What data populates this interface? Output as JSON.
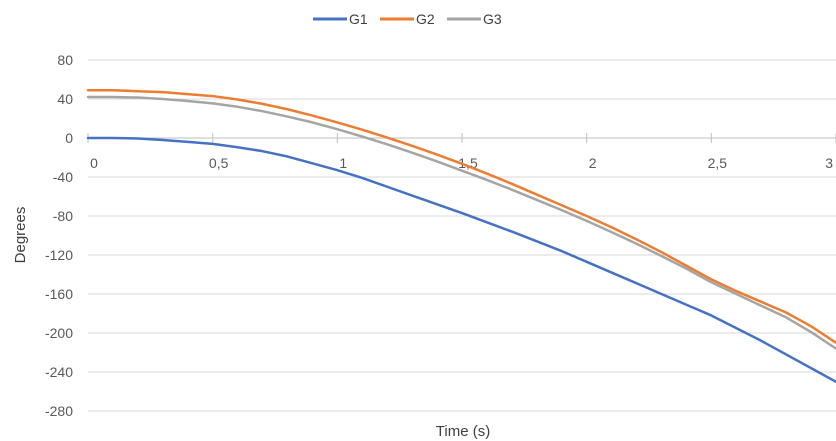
{
  "chart_data": {
    "type": "line",
    "xlabel": "Time (s)",
    "ylabel": "Degrees",
    "xlim": [
      0,
      3
    ],
    "ylim": [
      -280,
      80
    ],
    "x_ticks": [
      0,
      0.5,
      1,
      1.5,
      2,
      2.5,
      3
    ],
    "x_tick_labels": [
      "0",
      "0,5",
      "1",
      "1,5",
      "2",
      "2,5",
      "3"
    ],
    "y_ticks": [
      80,
      40,
      0,
      -40,
      -80,
      -120,
      -160,
      -200,
      -240,
      -280
    ],
    "y_tick_labels": [
      "80",
      "40",
      "0",
      "-40",
      "-80",
      "-120",
      "-160",
      "-200",
      "-240",
      "-280"
    ],
    "grid": "horizontal",
    "legend_position": "top-center",
    "series": [
      {
        "name": "G1",
        "color": "#4472C4",
        "x": [
          0,
          0.1,
          0.2,
          0.3,
          0.4,
          0.5,
          0.6,
          0.7,
          0.8,
          0.9,
          1.0,
          1.1,
          1.2,
          1.3,
          1.4,
          1.5,
          1.6,
          1.7,
          1.8,
          1.9,
          2.0,
          2.1,
          2.2,
          2.3,
          2.4,
          2.5,
          2.6,
          2.7,
          2.8,
          2.9,
          3.0
        ],
        "y": [
          0,
          0,
          -0.5,
          -2,
          -4,
          -6,
          -9.5,
          -13.5,
          -19,
          -26,
          -33,
          -41,
          -50,
          -59,
          -68,
          -77,
          -86.5,
          -96,
          -106,
          -116,
          -127,
          -138,
          -149,
          -160,
          -171,
          -182,
          -195,
          -208,
          -222,
          -236,
          -250
        ]
      },
      {
        "name": "G2",
        "color": "#ED7D31",
        "x": [
          0,
          0.1,
          0.2,
          0.3,
          0.4,
          0.5,
          0.6,
          0.7,
          0.8,
          0.9,
          1.0,
          1.1,
          1.2,
          1.3,
          1.4,
          1.5,
          1.6,
          1.7,
          1.8,
          1.9,
          2.0,
          2.1,
          2.2,
          2.3,
          2.4,
          2.5,
          2.6,
          2.7,
          2.8,
          2.9,
          3.0
        ],
        "y": [
          49,
          49,
          48,
          47,
          45,
          43,
          39.5,
          35,
          29.5,
          23,
          16,
          8.5,
          0.5,
          -8,
          -17,
          -26.5,
          -36.5,
          -47,
          -58,
          -69,
          -80,
          -91.5,
          -104,
          -117,
          -131,
          -145,
          -157,
          -168,
          -179,
          -193,
          -210
        ]
      },
      {
        "name": "G3",
        "color": "#A5A5A5",
        "x": [
          0,
          0.1,
          0.2,
          0.3,
          0.4,
          0.5,
          0.6,
          0.7,
          0.8,
          0.9,
          1.0,
          1.1,
          1.2,
          1.3,
          1.4,
          1.5,
          1.6,
          1.7,
          1.8,
          1.9,
          2.0,
          2.1,
          2.2,
          2.3,
          2.4,
          2.5,
          2.6,
          2.7,
          2.8,
          2.9,
          3.0
        ],
        "y": [
          42,
          42,
          41.5,
          40,
          38,
          35.5,
          32,
          27.5,
          22,
          16,
          9,
          1.5,
          -6.5,
          -15,
          -24,
          -33.5,
          -43,
          -53,
          -63.5,
          -74,
          -85,
          -96.5,
          -108.5,
          -121,
          -134,
          -148,
          -160,
          -172,
          -184,
          -199,
          -216
        ]
      }
    ]
  }
}
